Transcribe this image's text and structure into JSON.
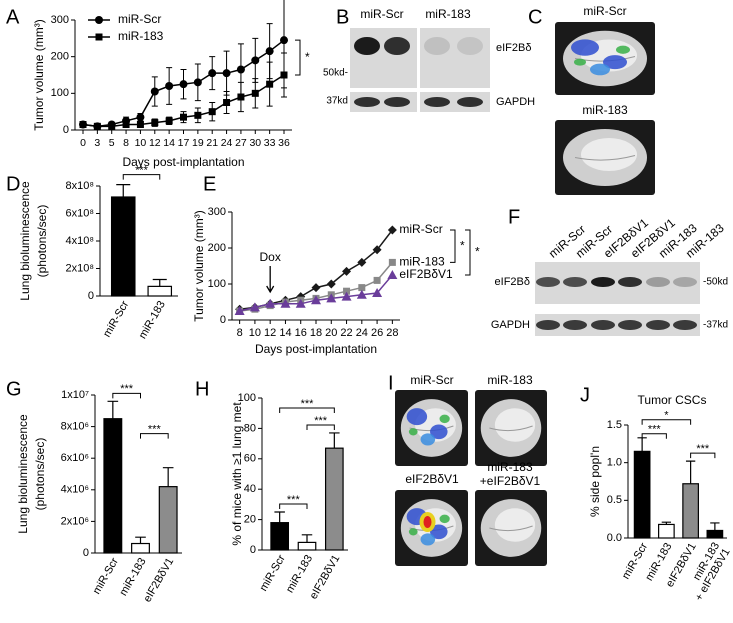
{
  "chart_data": [
    {
      "label": "A",
      "type": "line",
      "ylabel": "Tumor volume (mm³)",
      "xlabel": "Days post-implantation",
      "categories": [
        "0",
        "3",
        "5",
        "8",
        "10",
        "12",
        "14",
        "17",
        "19",
        "21",
        "24",
        "27",
        "30",
        "33",
        "36"
      ],
      "ylim": [
        0,
        300
      ],
      "yticks": [
        0,
        100,
        200,
        300
      ],
      "legend": "upper left",
      "series": [
        {
          "name": "miR-Scr",
          "color": "#000000",
          "marker": "circle",
          "values": [
            15,
            10,
            15,
            25,
            35,
            105,
            120,
            125,
            130,
            155,
            155,
            165,
            190,
            215,
            245
          ],
          "errors": [
            5,
            5,
            5,
            10,
            10,
            40,
            50,
            40,
            50,
            45,
            60,
            70,
            60,
            75,
            130
          ]
        },
        {
          "name": "miR-183",
          "color": "#000000",
          "marker": "square",
          "values": [
            15,
            10,
            10,
            15,
            15,
            20,
            25,
            35,
            40,
            50,
            75,
            90,
            100,
            125,
            150
          ],
          "errors": [
            5,
            5,
            5,
            5,
            5,
            10,
            10,
            15,
            20,
            25,
            30,
            40,
            40,
            60,
            60
          ]
        }
      ],
      "annotations": [
        "*"
      ]
    },
    {
      "label": "B",
      "type": "blot",
      "columns": [
        "miR-Scr",
        "miR-183"
      ],
      "rows": [
        "eIF2Bδ",
        "GAPDH"
      ],
      "markers": [
        "50kd-",
        "37kd"
      ]
    },
    {
      "label": "C",
      "type": "image",
      "labels": [
        "miR-Scr",
        "miR-183"
      ]
    },
    {
      "label": "D",
      "type": "bar",
      "ylabel": [
        "Lung bioluminescence",
        "(photons/sec)"
      ],
      "categories": [
        "miR-Scr",
        "miR-183"
      ],
      "values": [
        720000000,
        70000000
      ],
      "errors": [
        90000000,
        50000000
      ],
      "colors": [
        "#000000",
        "#ffffff"
      ],
      "ylim": [
        0,
        800000000
      ],
      "yticks": [
        0,
        {
          "value": 200000000,
          "label": "2x10⁸"
        },
        {
          "value": 400000000,
          "label": "4x10⁸"
        },
        {
          "value": 600000000,
          "label": "6x10⁸"
        },
        {
          "value": 800000000,
          "label": "8x10⁸"
        }
      ],
      "annotations": [
        "***"
      ]
    },
    {
      "label": "E",
      "type": "line",
      "ylabel": "Tumor volume (mm³)",
      "xlabel": "Days post-implantation",
      "x": [
        8,
        10,
        12,
        14,
        16,
        18,
        20,
        22,
        24,
        26,
        28
      ],
      "xlim": [
        7,
        29
      ],
      "xticks": [
        8,
        10,
        12,
        14,
        16,
        18,
        20,
        22,
        24,
        26,
        28
      ],
      "ylim": [
        0,
        300
      ],
      "yticks": [
        0,
        100,
        200,
        300
      ],
      "series": [
        {
          "name": "miR-Scr",
          "color": "#1a1a1a",
          "marker": "diamond",
          "values": [
            30,
            35,
            45,
            55,
            65,
            90,
            100,
            135,
            160,
            195,
            250
          ]
        },
        {
          "name": "miR-183",
          "color": "#888888",
          "marker": "square",
          "values": [
            25,
            30,
            40,
            50,
            55,
            60,
            70,
            80,
            90,
            110,
            160
          ]
        },
        {
          "name": "eIF2BδV1",
          "color": "#6a3d9a",
          "marker": "triangle",
          "values": [
            25,
            35,
            45,
            45,
            45,
            55,
            60,
            65,
            70,
            75,
            125
          ]
        }
      ],
      "annotations": [
        "Dox",
        "*",
        "*"
      ]
    },
    {
      "label": "F",
      "type": "blot",
      "columns": [
        "miR-Scr",
        "miR-Scr",
        "eIF2BδV1",
        "eIF2BδV1",
        "miR-183",
        "miR-183"
      ],
      "rows": [
        "eIF2Bδ",
        "GAPDH"
      ],
      "markers": [
        "-50kd",
        "-37kd"
      ]
    },
    {
      "label": "G",
      "type": "bar",
      "ylabel": [
        "Lung bioluminescence",
        "(photons/sec)"
      ],
      "categories": [
        "miR-Scr",
        "miR-183",
        "eIF2BδV1"
      ],
      "values": [
        8500000,
        600000,
        4200000
      ],
      "errors": [
        1100000,
        400000,
        1200000
      ],
      "colors": [
        "#000000",
        "#ffffff",
        "#8c8c8c"
      ],
      "ylim": [
        0,
        10000000
      ],
      "yticks": [
        0,
        {
          "value": 2000000,
          "label": "2x10⁶"
        },
        {
          "value": 4000000,
          "label": "4x10⁶"
        },
        {
          "value": 6000000,
          "label": "6x10⁶"
        },
        {
          "value": 8000000,
          "label": "8x10⁶"
        },
        {
          "value": 10000000,
          "label": "1x10⁷"
        }
      ],
      "annotations": [
        "***",
        "***"
      ]
    },
    {
      "label": "H",
      "type": "bar",
      "ylabel": "% of mice with ≥1 lung met",
      "categories": [
        "miR-Scr",
        "miR-183",
        "eIF2BδV1"
      ],
      "values": [
        18,
        5,
        67
      ],
      "errors": [
        7,
        5,
        10
      ],
      "colors": [
        "#000000",
        "#ffffff",
        "#8c8c8c"
      ],
      "ylim": [
        0,
        100
      ],
      "yticks": [
        0,
        20,
        40,
        60,
        80,
        100
      ],
      "annotations": [
        "***",
        "***",
        "***"
      ]
    },
    {
      "label": "I",
      "type": "image",
      "labels": [
        "miR-Scr",
        "miR-183",
        "eIF2BδV1",
        "miR-183",
        "+eIF2BδV1"
      ]
    },
    {
      "label": "J",
      "type": "bar",
      "title": "Tumor CSCs",
      "ylabel": "% side popl'n",
      "categories": [
        "miR-Scr",
        "miR-183",
        "eIF2BδV1",
        [
          "miR-183",
          "+ eIF2BδV1"
        ]
      ],
      "values": [
        1.15,
        0.18,
        0.72,
        0.1
      ],
      "errors": [
        0.18,
        0.03,
        0.3,
        0.1
      ],
      "colors": [
        "#000000",
        "#ffffff",
        "#8c8c8c",
        "#000000"
      ],
      "ylim": [
        0,
        1.5
      ],
      "yticks": [
        {
          "value": 0,
          "label": "0.0"
        },
        0.5,
        {
          "value": 1,
          "label": "1.0"
        },
        1.5
      ],
      "annotations": [
        "***",
        "*",
        "***"
      ]
    }
  ]
}
